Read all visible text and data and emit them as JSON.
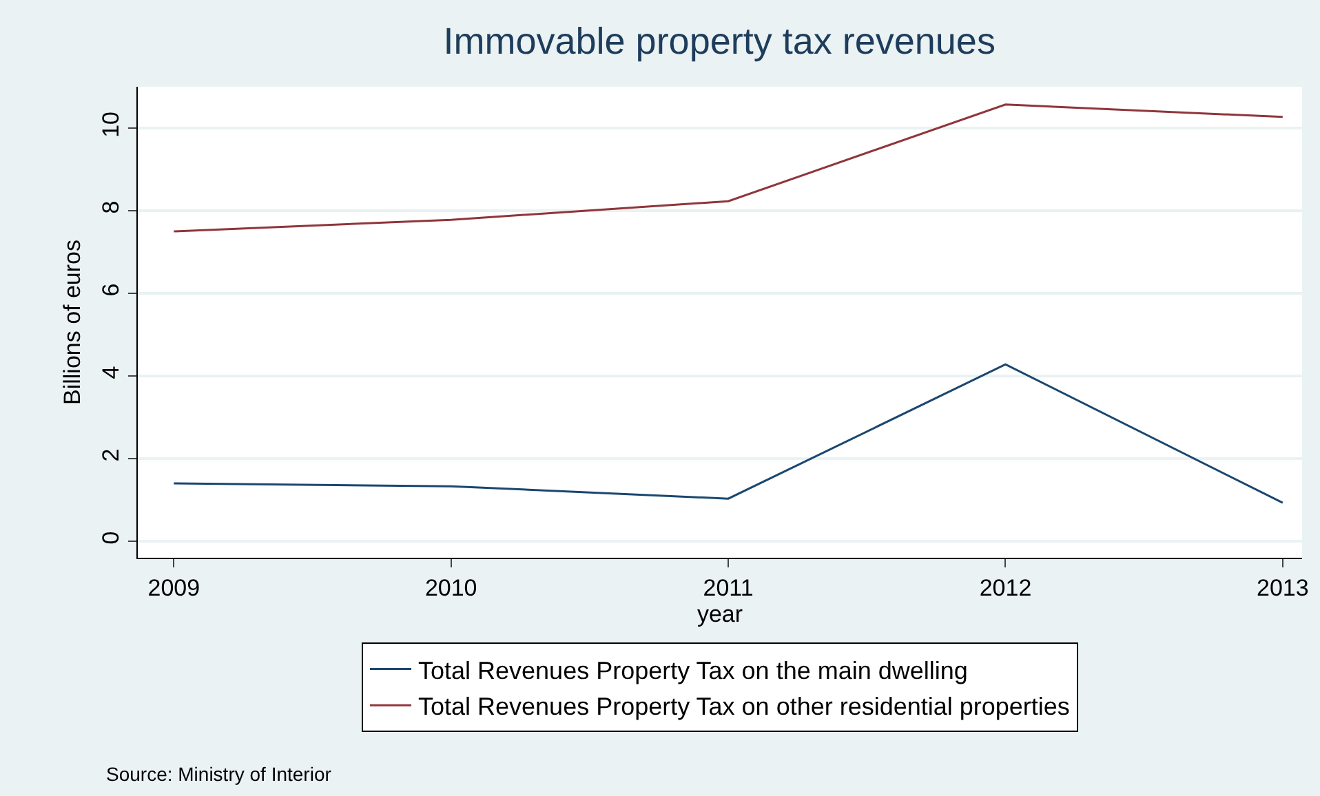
{
  "chart_data": {
    "type": "line",
    "title": "Immovable property tax revenues",
    "xlabel": "year",
    "ylabel": "Billions of euros",
    "x": [
      2009,
      2010,
      2011,
      2012,
      2013
    ],
    "series": [
      {
        "name": "Total Revenues Property Tax on the main dwelling",
        "color": "#1a476f",
        "values": [
          1.4,
          1.33,
          1.03,
          4.28,
          0.93
        ]
      },
      {
        "name": "Total Revenues Property Tax on other residential properties",
        "color": "#90353b",
        "values": [
          7.5,
          7.78,
          8.23,
          10.57,
          10.27
        ]
      }
    ],
    "xlim": [
      2008.87,
      2013.07
    ],
    "xticks": [
      2009,
      2010,
      2011,
      2012,
      2013
    ],
    "ylim": [
      -0.4,
      11
    ],
    "yticks": [
      0,
      2,
      4,
      6,
      8,
      10
    ],
    "grid": "y",
    "legend": "bottom",
    "marker": "none",
    "line_style": "solid",
    "annotations": [
      "Source: Ministry of Interior"
    ]
  }
}
